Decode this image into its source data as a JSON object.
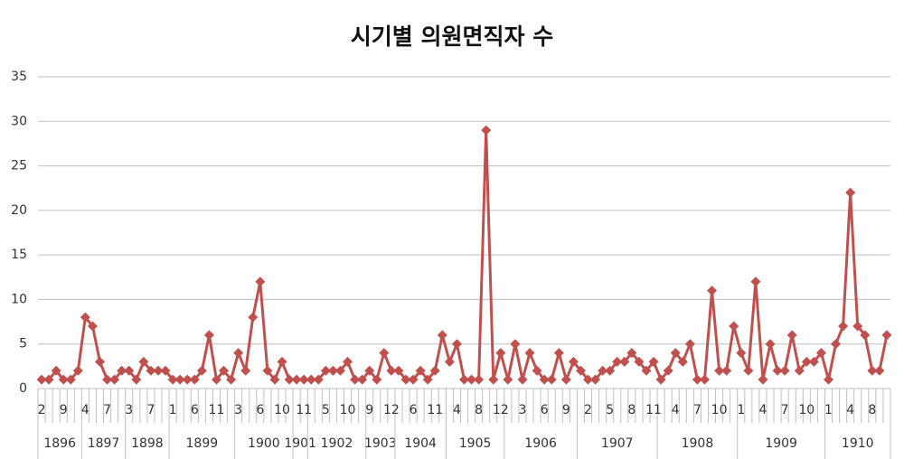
{
  "chart_data": {
    "type": "line",
    "title": "시기별 의원면직자 수",
    "categories": [
      "2",
      null,
      null,
      "9",
      null,
      null,
      "4",
      null,
      null,
      "7",
      null,
      null,
      "3",
      null,
      null,
      "7",
      null,
      null,
      "1",
      null,
      null,
      "6",
      null,
      null,
      "11",
      null,
      null,
      "3",
      null,
      null,
      "6",
      null,
      null,
      "10",
      null,
      null,
      "11",
      null,
      null,
      "5",
      null,
      null,
      "10",
      null,
      null,
      "9",
      null,
      null,
      "12",
      null,
      null,
      "6",
      null,
      null,
      "11",
      null,
      null,
      "4",
      null,
      null,
      "8",
      null,
      null,
      "12",
      null,
      null,
      "3",
      null,
      null,
      "6",
      null,
      null,
      "9",
      null,
      null,
      "2",
      null,
      null,
      "5",
      null,
      null,
      "8",
      null,
      null,
      "11",
      null,
      null,
      "4",
      null,
      null,
      "7",
      null,
      null,
      "10",
      null,
      null,
      "1",
      null,
      null,
      "4",
      null,
      null,
      "7",
      null,
      null,
      "10",
      null,
      null,
      "1",
      null,
      null,
      "4",
      null,
      null,
      "8",
      null,
      null
    ],
    "x_groups": [
      {
        "label": "1896",
        "size": 6
      },
      {
        "label": "1897",
        "size": 6
      },
      {
        "label": "1898",
        "size": 6
      },
      {
        "label": "1899",
        "size": 9
      },
      {
        "label": "1900",
        "size": 8
      },
      {
        "label": "1901",
        "size": 2
      },
      {
        "label": "1902",
        "size": 8
      },
      {
        "label": "1903",
        "size": 4
      },
      {
        "label": "1904",
        "size": 7
      },
      {
        "label": "1905",
        "size": 8
      },
      {
        "label": "1906",
        "size": 10
      },
      {
        "label": "1907",
        "size": 11
      },
      {
        "label": "1908",
        "size": 11
      },
      {
        "label": "1909",
        "size": 12
      },
      {
        "label": "1910",
        "size": 9
      }
    ],
    "values": [
      1,
      1,
      2,
      1,
      1,
      2,
      8,
      7,
      3,
      1,
      1,
      2,
      2,
      1,
      3,
      2,
      2,
      2,
      1,
      1,
      1,
      1,
      2,
      6,
      1,
      2,
      1,
      4,
      2,
      8,
      12,
      2,
      1,
      3,
      1,
      1,
      1,
      1,
      1,
      2,
      2,
      2,
      3,
      1,
      1,
      2,
      1,
      4,
      2,
      2,
      1,
      1,
      2,
      1,
      2,
      6,
      3,
      5,
      1,
      1,
      1,
      29,
      1,
      4,
      1,
      5,
      1,
      4,
      2,
      1,
      1,
      4,
      1,
      3,
      2,
      1,
      1,
      2,
      2,
      3,
      3,
      4,
      3,
      2,
      3,
      1,
      2,
      4,
      3,
      5,
      1,
      1,
      11,
      2,
      2,
      7,
      4,
      2,
      12,
      1,
      5,
      2,
      2,
      6,
      2,
      3,
      3,
      4,
      1,
      5,
      7,
      22,
      7,
      6,
      2,
      2,
      6
    ],
    "color": "#c0504d",
    "ylim": [
      0,
      35
    ],
    "yticks": [
      0,
      5,
      10,
      15,
      20,
      25,
      30,
      35
    ],
    "grid": true
  }
}
